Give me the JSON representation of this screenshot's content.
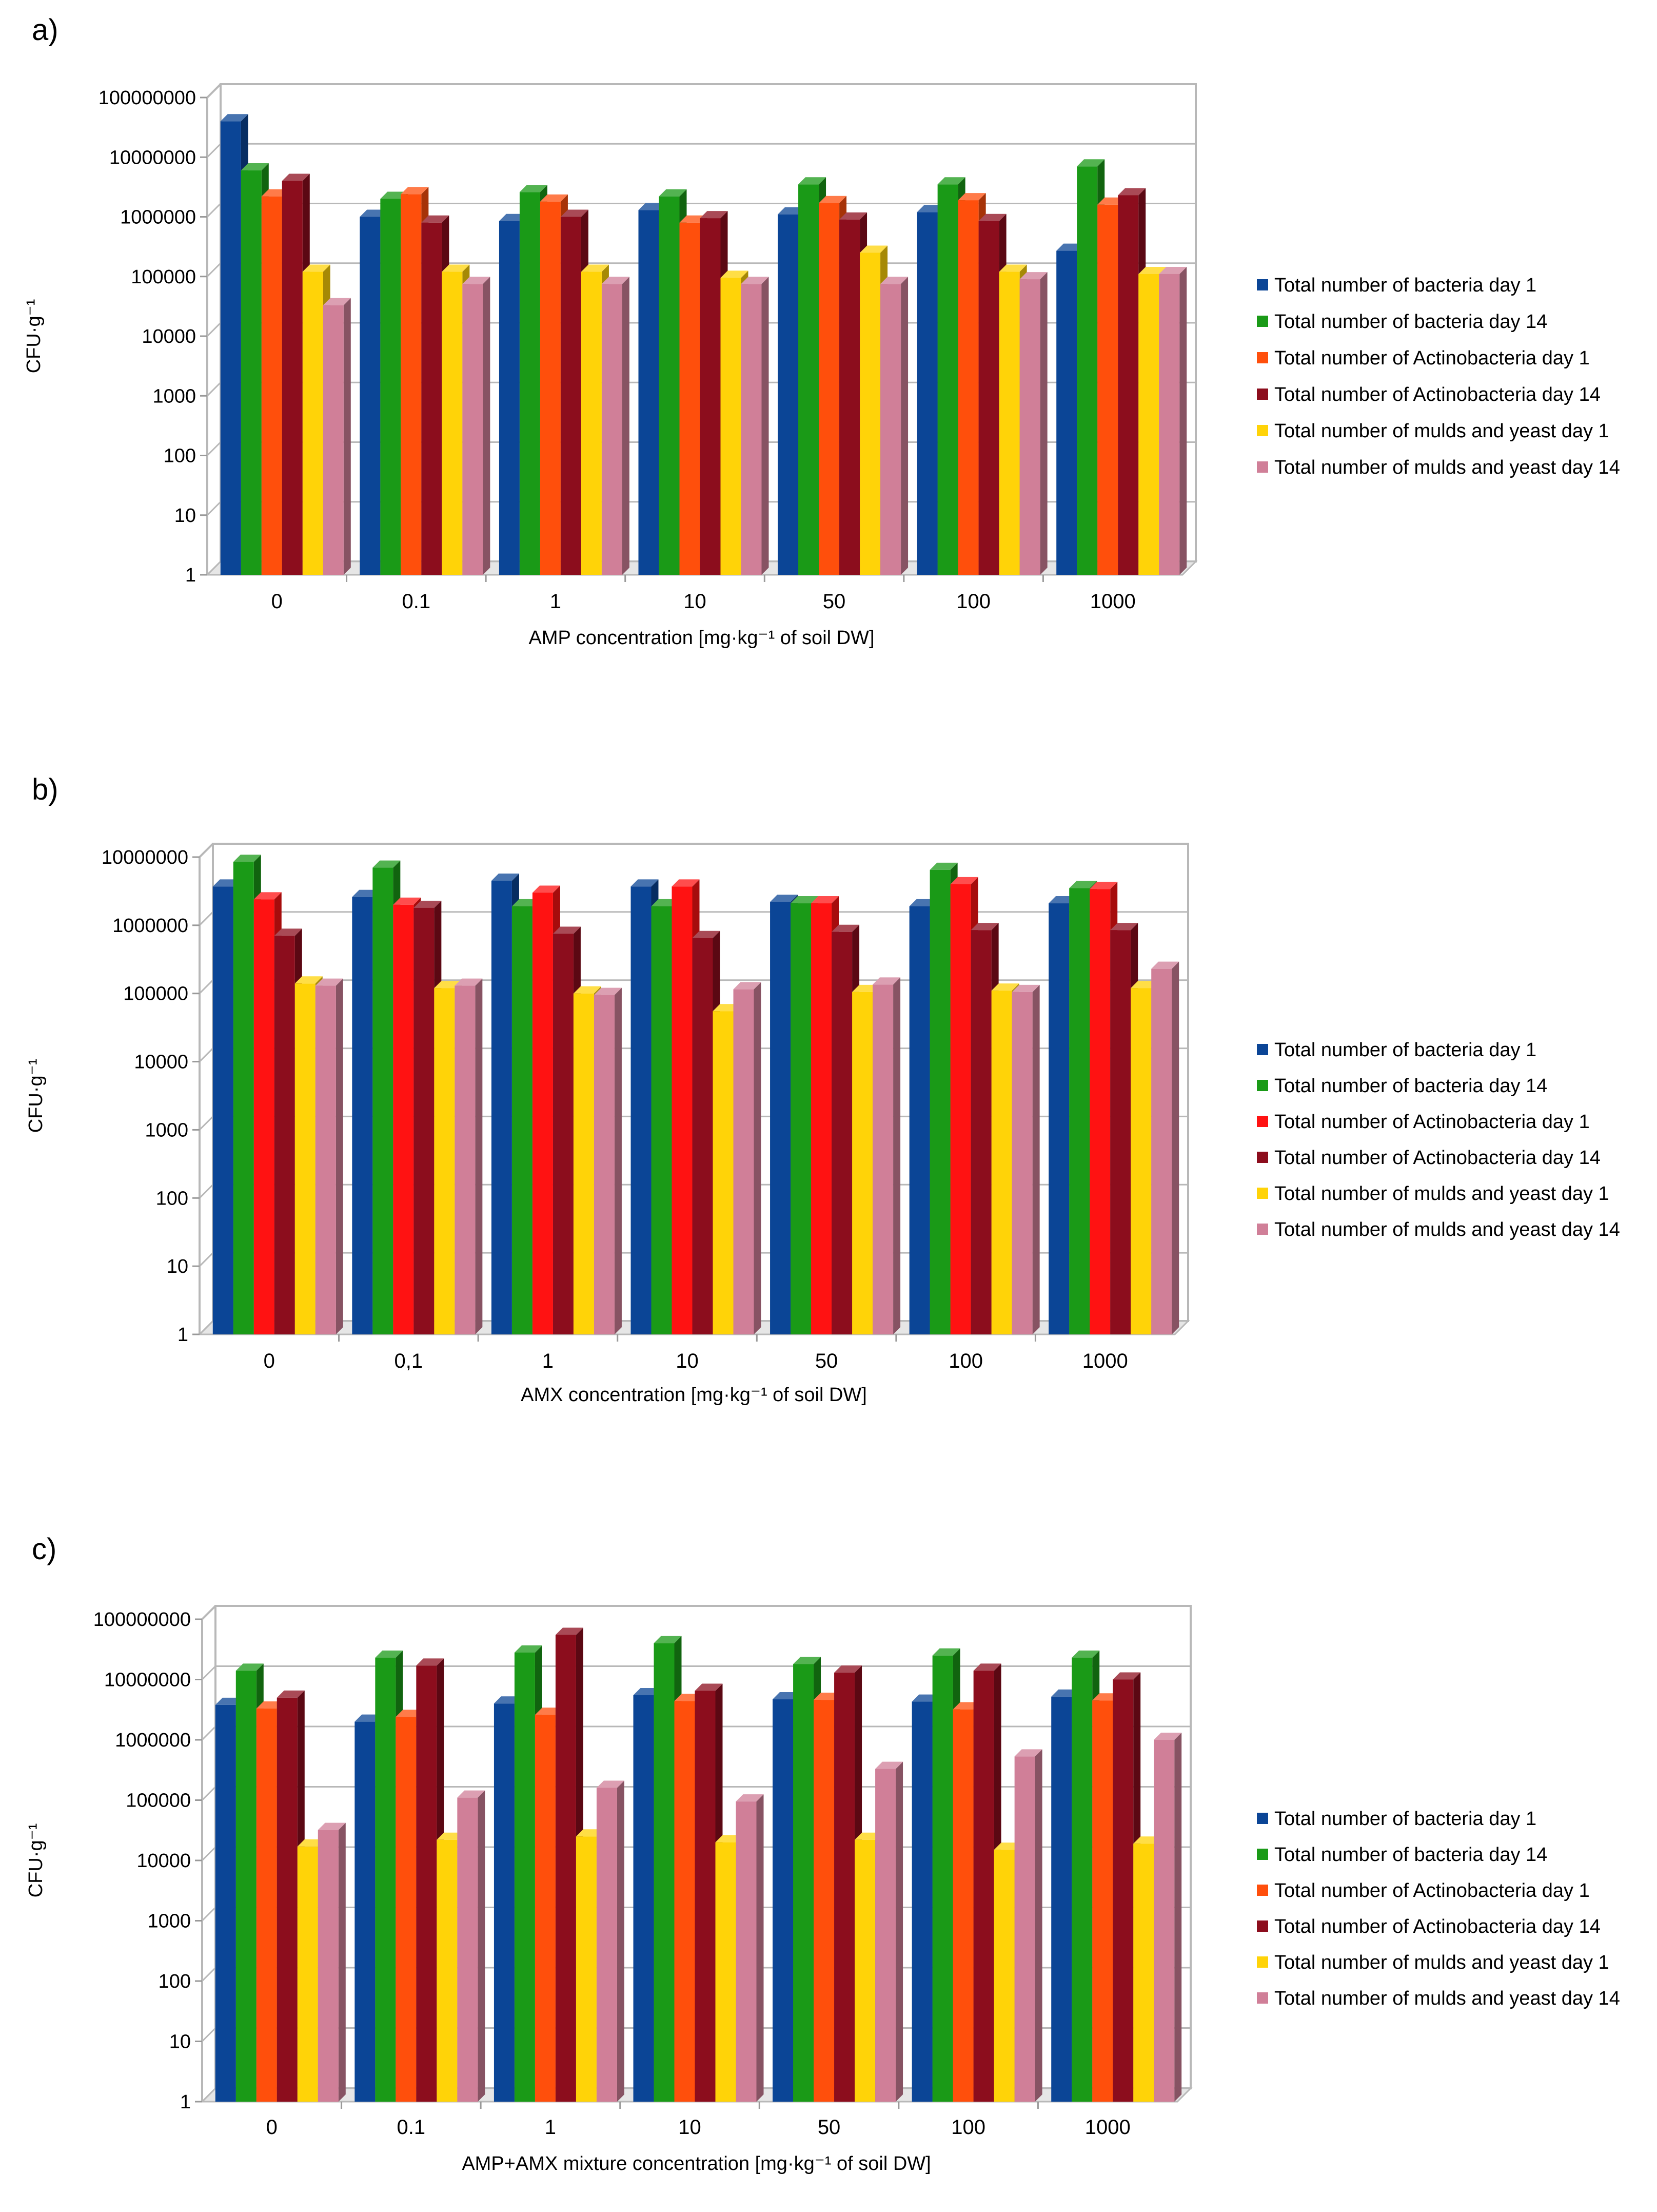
{
  "chart_data": [
    {
      "type": "bar",
      "panel_label": "a)",
      "title": "",
      "xlabel": "AMP concentration [mg·kg⁻¹ of soil DW]",
      "ylabel": "CFU·g⁻¹",
      "yscale": "log",
      "ylim": [
        1,
        100000000
      ],
      "yticks": [
        "1",
        "10",
        "100",
        "1000",
        "10000",
        "100000",
        "1000000",
        "10000000",
        "100000000"
      ],
      "categories": [
        "0",
        "0.1",
        "1",
        "10",
        "50",
        "100",
        "1000"
      ],
      "legend_position": "right",
      "series": [
        {
          "name": "Total number of bacteria day 1",
          "color": "#0b4596",
          "values": [
            40000000,
            1000000,
            850000,
            1300000,
            1100000,
            1200000,
            270000
          ]
        },
        {
          "name": "Total number of bacteria day 14",
          "color": "#1a9a17",
          "values": [
            6000000,
            2000000,
            2600000,
            2200000,
            3500000,
            3500000,
            7000000
          ]
        },
        {
          "name": "Total number of Actinobacteria day 1",
          "color": "#ff4f0c",
          "values": [
            2200000,
            2400000,
            1800000,
            800000,
            1700000,
            1900000,
            1600000
          ]
        },
        {
          "name": "Total number of Actinobacteria day 14",
          "color": "#8c0d1d",
          "values": [
            4000000,
            800000,
            1000000,
            950000,
            900000,
            850000,
            2300000
          ]
        },
        {
          "name": "Total number of mulds and yeast day 1",
          "color": "#ffd308",
          "values": [
            120000,
            120000,
            120000,
            95000,
            250000,
            120000,
            110000
          ]
        },
        {
          "name": "Total number of mulds and yeast day 14",
          "color": "#d07f98",
          "values": [
            33000,
            75000,
            75000,
            75000,
            75000,
            90000,
            110000
          ]
        }
      ]
    },
    {
      "type": "bar",
      "panel_label": "b)",
      "title": "",
      "xlabel": "AMX concentration [mg·kg⁻¹ of soil DW]",
      "ylabel": "CFU·g⁻¹",
      "yscale": "log",
      "ylim": [
        1,
        10000000
      ],
      "yticks": [
        "1",
        "10",
        "100",
        "1000",
        "10000",
        "100000",
        "1000000",
        "10000000"
      ],
      "categories": [
        "0",
        "0,1",
        "1",
        "10",
        "50",
        "100",
        "1000"
      ],
      "legend_position": "right",
      "series": [
        {
          "name": "Total number of bacteria day 1",
          "color": "#0b4596",
          "values": [
            3700000,
            2600000,
            4500000,
            3700000,
            2200000,
            1900000,
            2100000
          ]
        },
        {
          "name": "Total number of bacteria day 14",
          "color": "#1a9a17",
          "values": [
            8500000,
            7000000,
            1900000,
            1900000,
            2100000,
            6500000,
            3500000
          ]
        },
        {
          "name": "Total number of Actinobacteria day 1",
          "color": "#ff1212",
          "values": [
            2400000,
            2000000,
            3000000,
            3700000,
            2100000,
            4000000,
            3400000
          ]
        },
        {
          "name": "Total number of Actinobacteria day 14",
          "color": "#8c0d1d",
          "values": [
            700000,
            1800000,
            750000,
            650000,
            800000,
            850000,
            850000
          ]
        },
        {
          "name": "Total number of mulds and yeast day 1",
          "color": "#ffd308",
          "values": [
            140000,
            120000,
            100000,
            55000,
            105000,
            110000,
            120000
          ]
        },
        {
          "name": "Total number of mulds and yeast day 14",
          "color": "#d07f98",
          "values": [
            130000,
            130000,
            95000,
            115000,
            135000,
            105000,
            230000
          ]
        }
      ]
    },
    {
      "type": "bar",
      "panel_label": "c)",
      "title": "",
      "xlabel": "AMP+AMX mixture concentration [mg·kg⁻¹ of soil DW]",
      "ylabel": "CFU·g⁻¹",
      "yscale": "log",
      "ylim": [
        1,
        100000000
      ],
      "yticks": [
        "1",
        "10",
        "100",
        "1000",
        "10000",
        "100000",
        "1000000",
        "10000000",
        "100000000"
      ],
      "categories": [
        "0",
        "0.1",
        "1",
        "10",
        "50",
        "100",
        "1000"
      ],
      "legend_position": "right",
      "series": [
        {
          "name": "Total number of bacteria day 1",
          "color": "#0b4596",
          "values": [
            3800000,
            2000000,
            4000000,
            5500000,
            4700000,
            4300000,
            5200000
          ]
        },
        {
          "name": "Total number of bacteria day 14",
          "color": "#1a9a17",
          "values": [
            14000000,
            23000000,
            28000000,
            40000000,
            18000000,
            25000000,
            23000000
          ]
        },
        {
          "name": "Total number of Actinobacteria day 1",
          "color": "#ff4f0c",
          "values": [
            3300000,
            2400000,
            2600000,
            4400000,
            4600000,
            3200000,
            4500000
          ]
        },
        {
          "name": "Total number of Actinobacteria day 14",
          "color": "#8c0d1d",
          "values": [
            5000000,
            17000000,
            55000000,
            6500000,
            13000000,
            14000000,
            10000000
          ]
        },
        {
          "name": "Total number of mulds and yeast day 1",
          "color": "#ffd308",
          "values": [
            17000,
            22000,
            25000,
            20000,
            22000,
            15000,
            19000
          ]
        },
        {
          "name": "Total number of mulds and yeast day 14",
          "color": "#d07f98",
          "values": [
            32000,
            110000,
            160000,
            95000,
            330000,
            530000,
            1000000
          ]
        }
      ]
    }
  ]
}
